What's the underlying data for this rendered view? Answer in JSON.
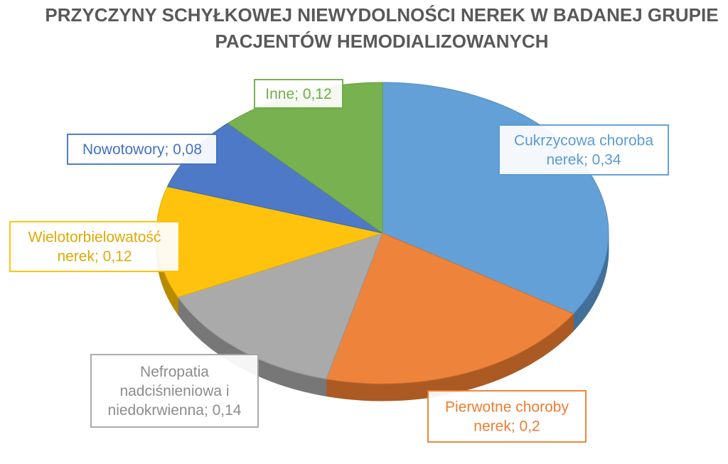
{
  "chart_data": {
    "type": "pie",
    "title_lines": [
      "PRZYCZYNY SCHYŁKOWEJ NIEWYDOLNOŚCI NEREK W BADANEJ GRUPIE",
      "PACJENTÓW HEMODIALIZOWANYCH"
    ],
    "slices": [
      {
        "label_lines": [
          "Cukrzycowa choroba",
          "nerek; 0,34"
        ],
        "value": 0.34,
        "color": "#5B9BD5"
      },
      {
        "label_lines": [
          "Pierwotne choroby",
          "nerek; 0,2"
        ],
        "value": 0.2,
        "color": "#ED7D31"
      },
      {
        "label_lines": [
          "Nefropatia",
          "nadciśnieniowa i",
          "niedokrwienna; 0,14"
        ],
        "value": 0.14,
        "color": "#A5A5A5"
      },
      {
        "label_lines": [
          "Wielotorbielowatość",
          "nerek; 0,12"
        ],
        "value": 0.12,
        "color": "#FFC000"
      },
      {
        "label_lines": [
          "Nowotowory; 0,08"
        ],
        "value": 0.08,
        "color": "#4472C4"
      },
      {
        "label_lines": [
          "Inne; 0,12"
        ],
        "value": 0.12,
        "color": "#70AD47"
      }
    ]
  }
}
